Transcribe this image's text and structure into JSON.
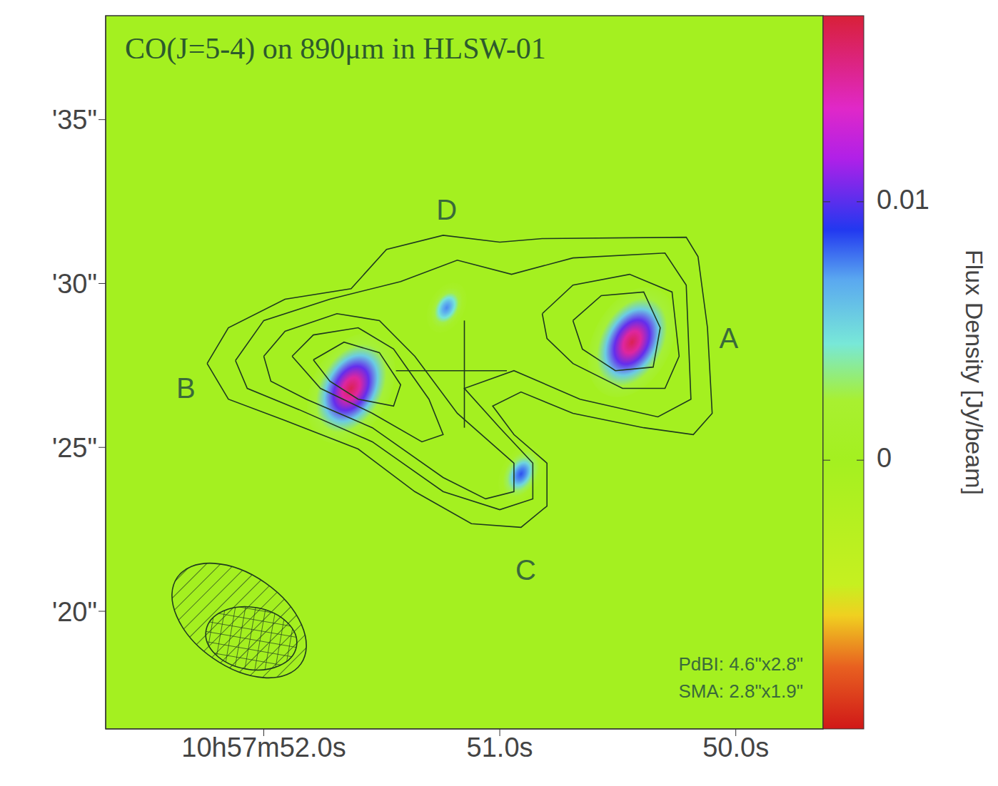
{
  "chart_data": {
    "type": "image_contour",
    "title": "CO(J=5-4) on 890μm in HLSW-01",
    "xlim": [
      52.67,
      49.63
    ],
    "xticks": [
      {
        "value": 52,
        "label": "10h57m52.0s"
      },
      {
        "value": 51,
        "label": "51.0s"
      },
      {
        "value": 50,
        "label": "50.0s"
      }
    ],
    "ylim": [
      16.41,
      38.17
    ],
    "yticks": [
      {
        "value": 20,
        "label": "'20\""
      },
      {
        "value": 25,
        "label": "'25\""
      },
      {
        "value": 30,
        "label": "'30\""
      },
      {
        "value": 35,
        "label": "'35\""
      }
    ],
    "sources": [
      {
        "x": 50.44,
        "y": 28.21,
        "peak": 0.0165
      },
      {
        "x": 51.63,
        "y": 26.8,
        "peak": 0.0165
      },
      {
        "x": 50.91,
        "y": 24.19,
        "peak": 0.0085
      },
      {
        "x": 51.225,
        "y": 29.26,
        "peak": 0.0075
      }
    ],
    "colorbar": {
      "label": "Flux Density [Jy/beam]",
      "range": [
        -0.0104,
        0.0172
      ],
      "ticks": [
        0,
        0.01
      ]
    },
    "contours": [
      [
        [
          52.24,
          27.56
        ],
        [
          52.15,
          28.65
        ],
        [
          51.91,
          29.52
        ],
        [
          51.63,
          29.84
        ],
        [
          51.48,
          31.04
        ],
        [
          51.24,
          31.47
        ],
        [
          51.0,
          31.26
        ],
        [
          50.82,
          31.37
        ],
        [
          50.21,
          31.41
        ],
        [
          50.16,
          30.82
        ],
        [
          50.12,
          28.65
        ],
        [
          50.1,
          26.04
        ],
        [
          50.18,
          25.39
        ],
        [
          50.39,
          25.6
        ],
        [
          50.69,
          26.04
        ],
        [
          50.91,
          26.69
        ],
        [
          51.03,
          26.26
        ],
        [
          50.94,
          25.39
        ],
        [
          50.8,
          24.52
        ],
        [
          50.8,
          23.21
        ],
        [
          50.91,
          22.56
        ],
        [
          51.12,
          22.67
        ],
        [
          51.36,
          23.65
        ],
        [
          51.6,
          24.95
        ],
        [
          51.91,
          25.82
        ],
        [
          52.15,
          26.47
        ]
      ],
      [
        [
          52.12,
          27.65
        ],
        [
          52.0,
          28.87
        ],
        [
          51.72,
          29.52
        ],
        [
          51.42,
          30.06
        ],
        [
          51.18,
          30.71
        ],
        [
          50.95,
          30.28
        ],
        [
          50.69,
          30.78
        ],
        [
          50.3,
          30.93
        ],
        [
          50.21,
          29.95
        ],
        [
          50.19,
          26.47
        ],
        [
          50.33,
          25.93
        ],
        [
          50.66,
          26.47
        ],
        [
          50.94,
          27.34
        ],
        [
          51.15,
          26.8
        ],
        [
          51.0,
          25.6
        ],
        [
          50.86,
          24.52
        ],
        [
          50.86,
          23.43
        ],
        [
          51.0,
          23.1
        ],
        [
          51.24,
          23.65
        ],
        [
          51.54,
          25.17
        ],
        [
          51.85,
          26.15
        ],
        [
          52.07,
          26.8
        ]
      ],
      [
        [
          52.0,
          27.78
        ],
        [
          51.91,
          28.54
        ],
        [
          51.69,
          29.08
        ],
        [
          51.51,
          28.87
        ],
        [
          51.36,
          27.78
        ],
        [
          51.18,
          26.04
        ],
        [
          50.94,
          24.52
        ],
        [
          50.94,
          23.65
        ],
        [
          51.06,
          23.43
        ],
        [
          51.24,
          24.08
        ],
        [
          51.54,
          25.6
        ],
        [
          51.82,
          26.47
        ],
        [
          51.97,
          27.02
        ]
      ],
      [
        [
          51.88,
          27.78
        ],
        [
          51.79,
          28.43
        ],
        [
          51.6,
          28.65
        ],
        [
          51.45,
          28.0
        ],
        [
          51.3,
          26.47
        ],
        [
          51.24,
          25.39
        ],
        [
          51.33,
          25.17
        ],
        [
          51.54,
          26.04
        ],
        [
          51.76,
          26.8
        ]
      ],
      [
        [
          51.79,
          27.67
        ],
        [
          51.66,
          28.21
        ],
        [
          51.51,
          27.89
        ],
        [
          51.42,
          26.91
        ],
        [
          51.45,
          26.26
        ],
        [
          51.6,
          26.47
        ],
        [
          51.72,
          27.02
        ]
      ],
      [
        [
          50.82,
          29.08
        ],
        [
          50.69,
          29.95
        ],
        [
          50.45,
          30.28
        ],
        [
          50.27,
          29.74
        ],
        [
          50.24,
          27.78
        ],
        [
          50.3,
          26.8
        ],
        [
          50.48,
          26.8
        ],
        [
          50.69,
          27.56
        ],
        [
          50.8,
          28.32
        ]
      ],
      [
        [
          50.69,
          28.87
        ],
        [
          50.57,
          29.63
        ],
        [
          50.39,
          29.74
        ],
        [
          50.32,
          28.65
        ],
        [
          50.35,
          27.45
        ],
        [
          50.51,
          27.34
        ],
        [
          50.65,
          28.0
        ]
      ]
    ],
    "cross": {
      "x": 51.15,
      "y": 27.34,
      "x_span": [
        51.44,
        50.97
      ],
      "y_span": [
        28.87,
        25.6
      ]
    },
    "labels": [
      {
        "text": "A",
        "x": 50.03,
        "y": 28.26
      },
      {
        "text": "B",
        "x": 52.33,
        "y": 26.74
      },
      {
        "text": "C",
        "x": 50.89,
        "y": 21.19
      },
      {
        "text": "D",
        "x": 51.225,
        "y": 32.17
      }
    ],
    "beams": [
      {
        "label": "PdBI: 4.6\"x2.8\"",
        "major": 4.6,
        "minor": 2.8
      },
      {
        "label": "SMA: 2.8\"x1.9\"",
        "major": 2.8,
        "minor": 1.9
      }
    ]
  }
}
